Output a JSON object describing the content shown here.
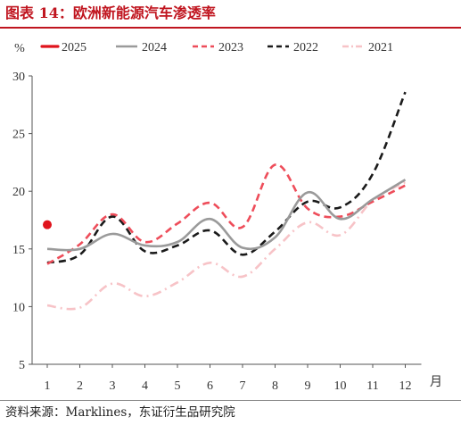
{
  "figure": {
    "title": "图表 14：欧洲新能源汽车渗透率",
    "source": "资料来源：Marklines，东证衍生品研究院"
  },
  "chart_data": {
    "type": "line",
    "ylabel": "%",
    "xlabel": "月",
    "ylim": [
      5,
      30
    ],
    "yticks": [
      5,
      10,
      15,
      20,
      25,
      30
    ],
    "categories": [
      "1",
      "2",
      "3",
      "4",
      "5",
      "6",
      "7",
      "8",
      "9",
      "10",
      "11",
      "12"
    ],
    "legend_position": "top",
    "grid": false,
    "series": [
      {
        "name": "2025",
        "color": "#e0131c",
        "style": "marker",
        "values": [
          17.1,
          null,
          null,
          null,
          null,
          null,
          null,
          null,
          null,
          null,
          null,
          null
        ]
      },
      {
        "name": "2024",
        "color": "#9a9a9a",
        "style": "solid",
        "values": [
          15.0,
          15.0,
          16.3,
          15.3,
          15.6,
          17.6,
          15.1,
          16.0,
          19.9,
          17.6,
          19.3,
          21.0
        ]
      },
      {
        "name": "2023",
        "color": "#ee4d5a",
        "style": "dashed",
        "values": [
          13.7,
          15.4,
          18.0,
          15.6,
          17.2,
          19.0,
          16.9,
          22.3,
          18.5,
          17.8,
          19.1,
          20.5
        ]
      },
      {
        "name": "2022",
        "color": "#1a1a1a",
        "style": "dashed",
        "values": [
          13.8,
          14.5,
          17.8,
          14.8,
          15.3,
          16.6,
          14.5,
          16.5,
          19.1,
          18.6,
          21.5,
          28.6
        ]
      },
      {
        "name": "2021",
        "color": "#f7c3c7",
        "style": "dashdot",
        "values": [
          10.1,
          9.9,
          12.0,
          10.9,
          12.1,
          13.8,
          12.6,
          15.0,
          17.3,
          16.2,
          19.2,
          20.8
        ]
      }
    ]
  }
}
